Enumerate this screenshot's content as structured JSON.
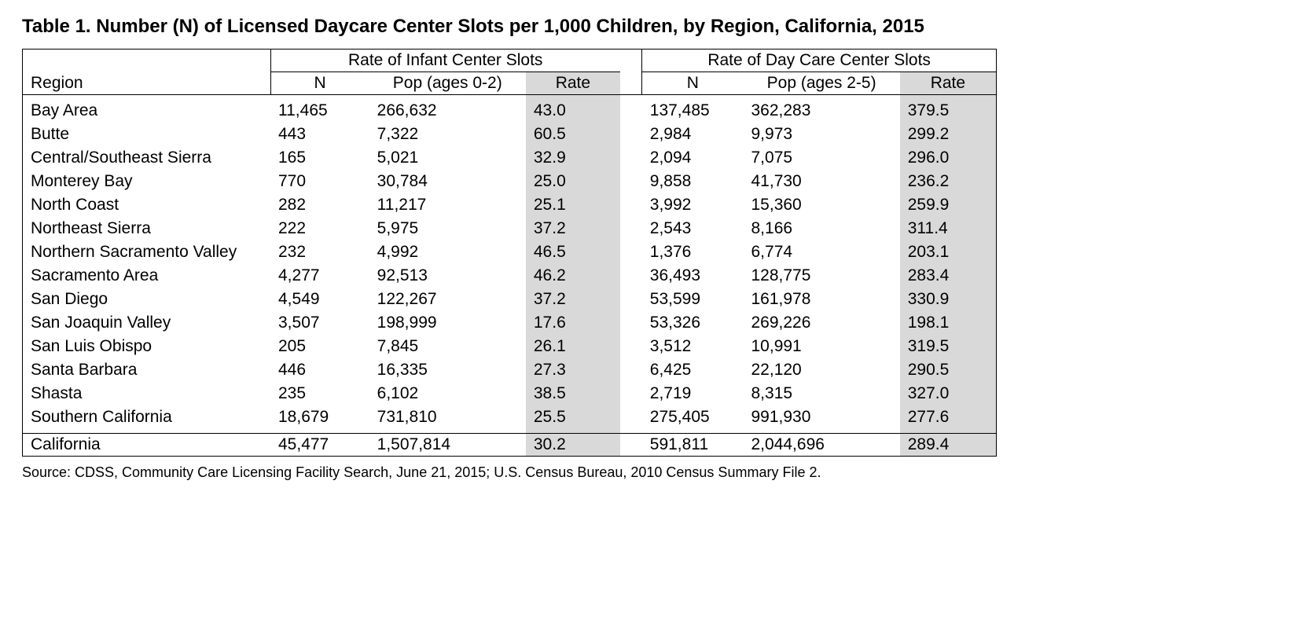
{
  "title": "Table 1. Number (N) of Licensed Daycare Center Slots per 1,000 Children, by Region, California, 2015",
  "source": "Source: CDSS, Community Care Licensing Facility Search, June 21, 2015; U.S. Census Bureau, 2010 Census Summary File 2.",
  "table": {
    "type": "table",
    "font_family": "Arial",
    "font_size_pt": 16,
    "title_font_size_pt": 18,
    "title_font_weight": "bold",
    "source_font_size_pt": 13,
    "background_color": "#ffffff",
    "text_color": "#000000",
    "border_color": "#000000",
    "shaded_column_color": "#d9d9d9",
    "column_alignment": [
      "left",
      "right",
      "right",
      "right",
      "right",
      "right",
      "right"
    ],
    "headers": {
      "region": "Region",
      "group1": "Rate of Infant Center Slots",
      "group2": "Rate of Day Care Center Slots",
      "sub": {
        "n": "N",
        "pop1": "Pop (ages 0-2)",
        "pop2": "Pop (ages 2-5)",
        "rate": "Rate"
      }
    },
    "rows": [
      {
        "region": "Bay Area",
        "n1": "11,465",
        "pop1": "266,632",
        "rate1": "43.0",
        "n2": "137,485",
        "pop2": "362,283",
        "rate2": "379.5"
      },
      {
        "region": "Butte",
        "n1": "443",
        "pop1": "7,322",
        "rate1": "60.5",
        "n2": "2,984",
        "pop2": "9,973",
        "rate2": "299.2"
      },
      {
        "region": "Central/Southeast Sierra",
        "n1": "165",
        "pop1": "5,021",
        "rate1": "32.9",
        "n2": "2,094",
        "pop2": "7,075",
        "rate2": "296.0"
      },
      {
        "region": "Monterey Bay",
        "n1": "770",
        "pop1": "30,784",
        "rate1": "25.0",
        "n2": "9,858",
        "pop2": "41,730",
        "rate2": "236.2"
      },
      {
        "region": "North Coast",
        "n1": "282",
        "pop1": "11,217",
        "rate1": "25.1",
        "n2": "3,992",
        "pop2": "15,360",
        "rate2": "259.9"
      },
      {
        "region": "Northeast Sierra",
        "n1": "222",
        "pop1": "5,975",
        "rate1": "37.2",
        "n2": "2,543",
        "pop2": "8,166",
        "rate2": "311.4"
      },
      {
        "region": "Northern Sacramento Valley",
        "n1": "232",
        "pop1": "4,992",
        "rate1": "46.5",
        "n2": "1,376",
        "pop2": "6,774",
        "rate2": "203.1"
      },
      {
        "region": "Sacramento Area",
        "n1": "4,277",
        "pop1": "92,513",
        "rate1": "46.2",
        "n2": "36,493",
        "pop2": "128,775",
        "rate2": "283.4"
      },
      {
        "region": "San Diego",
        "n1": "4,549",
        "pop1": "122,267",
        "rate1": "37.2",
        "n2": "53,599",
        "pop2": "161,978",
        "rate2": "330.9"
      },
      {
        "region": "San Joaquin Valley",
        "n1": "3,507",
        "pop1": "198,999",
        "rate1": "17.6",
        "n2": "53,326",
        "pop2": "269,226",
        "rate2": "198.1"
      },
      {
        "region": "San Luis Obispo",
        "n1": "205",
        "pop1": "7,845",
        "rate1": "26.1",
        "n2": "3,512",
        "pop2": "10,991",
        "rate2": "319.5"
      },
      {
        "region": "Santa Barbara",
        "n1": "446",
        "pop1": "16,335",
        "rate1": "27.3",
        "n2": "6,425",
        "pop2": "22,120",
        "rate2": "290.5"
      },
      {
        "region": "Shasta",
        "n1": "235",
        "pop1": "6,102",
        "rate1": "38.5",
        "n2": "2,719",
        "pop2": "8,315",
        "rate2": "327.0"
      },
      {
        "region": "Southern California",
        "n1": "18,679",
        "pop1": "731,810",
        "rate1": "25.5",
        "n2": "275,405",
        "pop2": "991,930",
        "rate2": "277.6"
      }
    ],
    "summary": {
      "region": "California",
      "n1": "45,477",
      "pop1": "1,507,814",
      "rate1": "30.2",
      "n2": "591,811",
      "pop2": "2,044,696",
      "rate2": "289.4"
    }
  }
}
